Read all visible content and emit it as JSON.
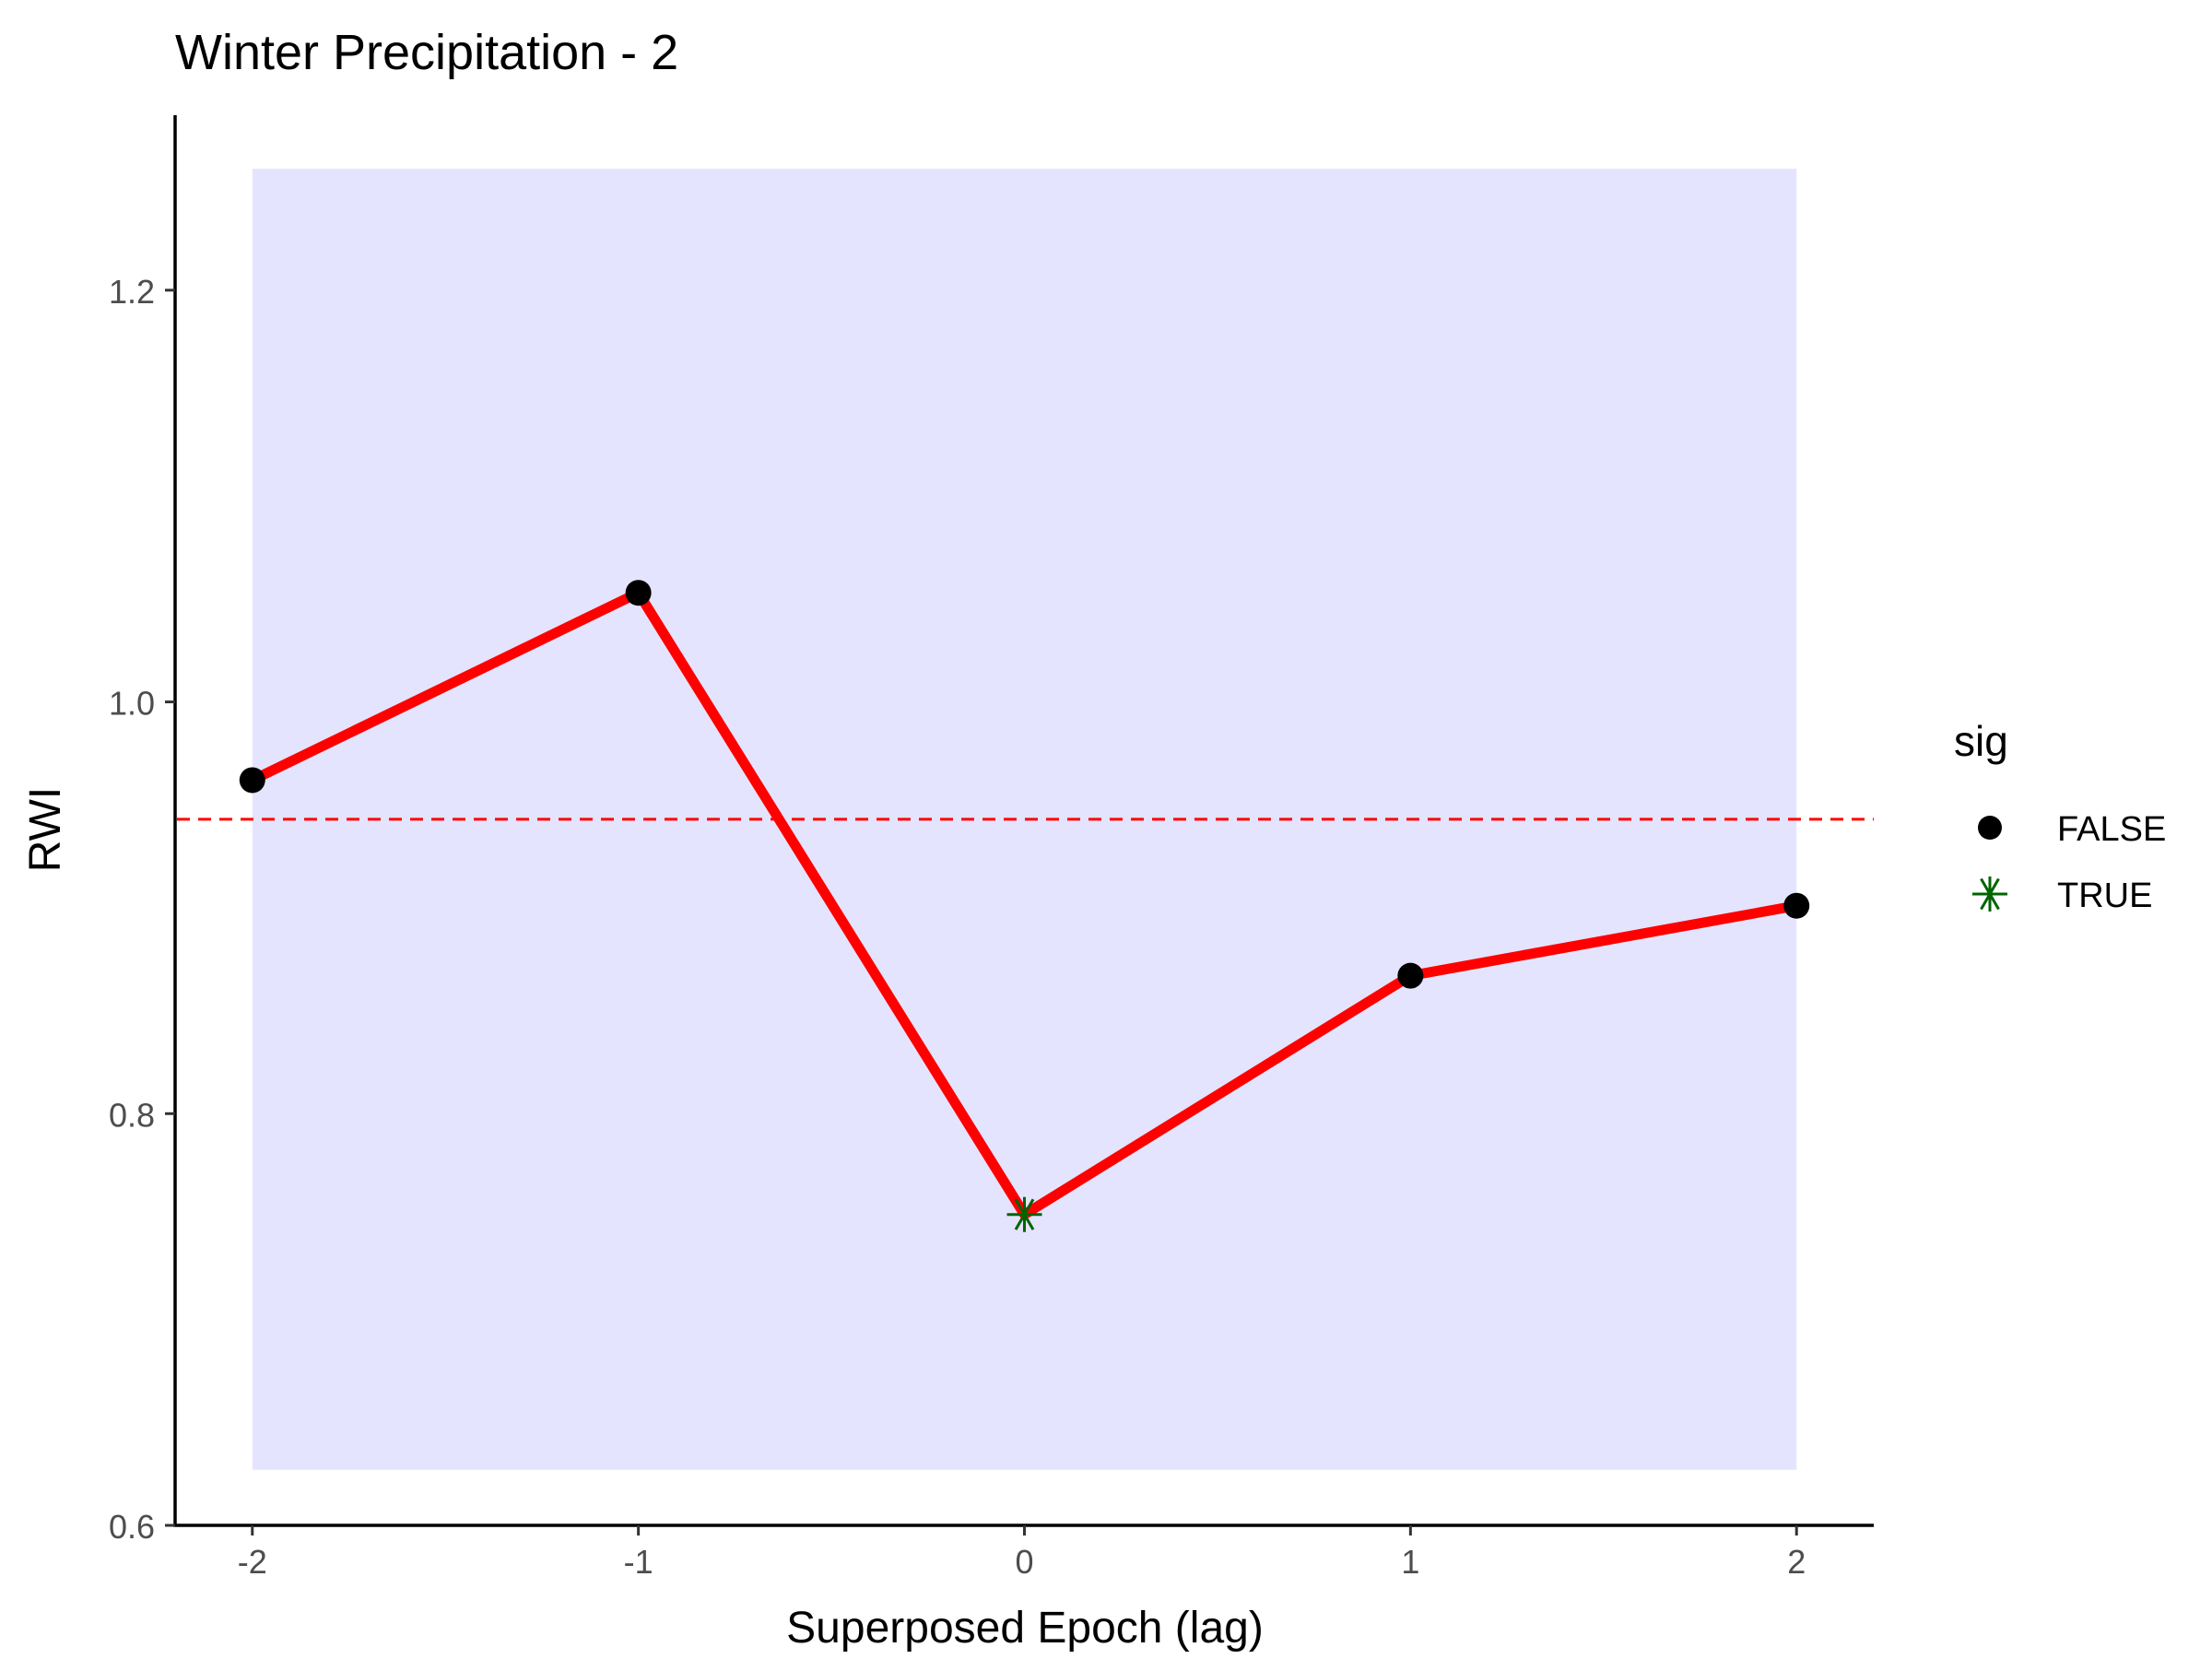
{
  "chart_data": {
    "type": "line",
    "title": "Winter Precipitation - 2",
    "xlabel": "Superposed Epoch (lag)",
    "ylabel": "RWI",
    "xlim": [
      -2.2,
      2.2
    ],
    "ylim": [
      0.6,
      1.285
    ],
    "x_ticks": [
      -2,
      -1,
      0,
      1,
      2
    ],
    "x_tick_labels": [
      "-2",
      "-1",
      "0",
      "1",
      "2"
    ],
    "y_ticks": [
      0.6,
      0.8,
      1.0,
      1.2
    ],
    "y_tick_labels": [
      "0.6",
      "0.8",
      "1.0",
      "1.2"
    ],
    "grid": false,
    "band": {
      "x": [
        -2,
        2
      ],
      "y": [
        0.627,
        1.259
      ],
      "color": "#e4e4fe"
    },
    "reference_line": {
      "y": 0.943,
      "style": "dashed",
      "color": "#ff0000"
    },
    "series": [
      {
        "x": [
          -2,
          -1,
          0,
          1,
          2
        ],
        "values": [
          0.962,
          1.053,
          0.751,
          0.867,
          0.901
        ],
        "sig": [
          "FALSE",
          "FALSE",
          "TRUE",
          "FALSE",
          "FALSE"
        ],
        "color": "#ff0000"
      }
    ],
    "legend": {
      "title": "sig",
      "position": "right",
      "entries": [
        {
          "label": "FALSE",
          "marker": "dot",
          "color": "#000000"
        },
        {
          "label": "TRUE",
          "marker": "asterisk",
          "color": "#006400"
        }
      ]
    }
  }
}
